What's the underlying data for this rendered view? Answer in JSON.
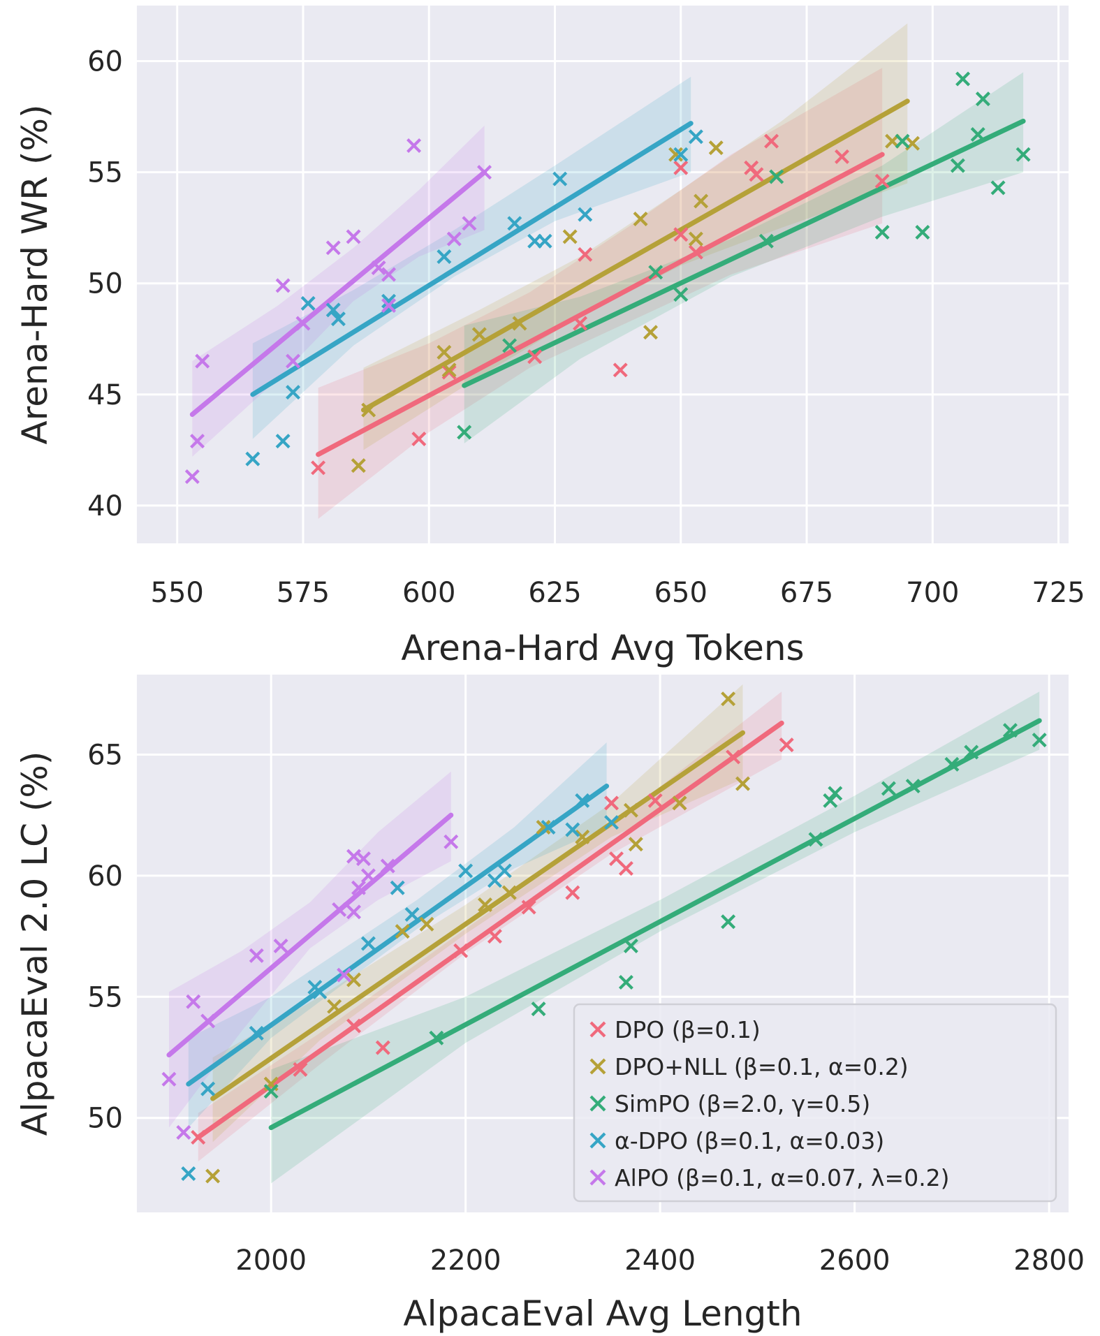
{
  "colors": {
    "DPO": "#f0697c",
    "DPO+NLL": "#b5a138",
    "SimPO": "#34ac79",
    "alpha-DPO": "#36a5c5",
    "AlPO": "#c578ea",
    "background": "#eaeaf2",
    "grid": "#ffffff"
  },
  "legend": [
    {
      "key": "DPO",
      "label": "DPO (β=0.1)"
    },
    {
      "key": "DPO+NLL",
      "label": "DPO+NLL (β=0.1, α=0.2)"
    },
    {
      "key": "SimPO",
      "label": "SimPO (β=2.0, γ=0.5)"
    },
    {
      "key": "alpha-DPO",
      "label": "α-DPO (β=0.1, α=0.03)"
    },
    {
      "key": "AlPO",
      "label": "AlPO (β=0.1, α=0.07, λ=0.2)"
    }
  ],
  "chart_data": [
    {
      "type": "scatter",
      "title": "",
      "xlabel": "Arena-Hard Avg Tokens",
      "ylabel": "Arena-Hard WR (%)",
      "xlim": [
        542,
        727
      ],
      "ylim": [
        38.3,
        62.5
      ],
      "xticks": [
        550,
        575,
        600,
        625,
        650,
        675,
        700,
        725
      ],
      "yticks": [
        40,
        45,
        50,
        55,
        60
      ],
      "series": [
        {
          "key": "DPO",
          "points": [
            [
              578,
              41.7
            ],
            [
              598,
              43.0
            ],
            [
              604,
              46.0
            ],
            [
              621,
              46.7
            ],
            [
              630,
              48.2
            ],
            [
              631,
              51.3
            ],
            [
              638,
              46.1
            ],
            [
              650,
              52.2
            ],
            [
              650,
              55.2
            ],
            [
              653,
              51.4
            ],
            [
              664,
              55.2
            ],
            [
              665,
              54.9
            ],
            [
              668,
              56.4
            ],
            [
              682,
              55.7
            ],
            [
              690,
              54.6
            ]
          ],
          "fit": [
            [
              578,
              42.3
            ],
            [
              690,
              55.8
            ]
          ],
          "band": [
            [
              578,
              39.4,
              45.3
            ],
            [
              600,
              43.3,
              47.3
            ],
            [
              620,
              46.2,
              49.6
            ],
            [
              640,
              48.3,
              52.6
            ],
            [
              660,
              50.4,
              55.8
            ],
            [
              690,
              52.7,
              59.7
            ]
          ]
        },
        {
          "key": "DPO+NLL",
          "points": [
            [
              586,
              41.8
            ],
            [
              588,
              44.3
            ],
            [
              603,
              46.9
            ],
            [
              604,
              46.1
            ],
            [
              610,
              47.7
            ],
            [
              618,
              48.2
            ],
            [
              628,
              52.1
            ],
            [
              642,
              52.9
            ],
            [
              644,
              47.8
            ],
            [
              649,
              55.8
            ],
            [
              653,
              52.0
            ],
            [
              654,
              53.7
            ],
            [
              657,
              56.1
            ],
            [
              692,
              56.4
            ],
            [
              696,
              56.3
            ]
          ],
          "fit": [
            [
              587,
              44.3
            ],
            [
              695,
              58.2
            ]
          ],
          "band": [
            [
              587,
              42.5,
              46.2
            ],
            [
              610,
              45.8,
              48.8
            ],
            [
              630,
              48.5,
              51.2
            ],
            [
              650,
              50.8,
              54.2
            ],
            [
              670,
              52.5,
              57.3
            ],
            [
              695,
              54.5,
              61.7
            ]
          ]
        },
        {
          "key": "SimPO",
          "points": [
            [
              607,
              43.3
            ],
            [
              616,
              47.2
            ],
            [
              645,
              50.5
            ],
            [
              650,
              49.5
            ],
            [
              667,
              51.9
            ],
            [
              669,
              54.8
            ],
            [
              690,
              52.3
            ],
            [
              694,
              56.4
            ],
            [
              698,
              52.3
            ],
            [
              705,
              55.3
            ],
            [
              706,
              59.2
            ],
            [
              709,
              56.7
            ],
            [
              710,
              58.3
            ],
            [
              713,
              54.3
            ],
            [
              718,
              55.8
            ]
          ],
          "fit": [
            [
              607,
              45.4
            ],
            [
              718,
              57.3
            ]
          ],
          "band": [
            [
              607,
              42.8,
              48.1
            ],
            [
              630,
              46.6,
              49.4
            ],
            [
              660,
              50.3,
              52.0
            ],
            [
              690,
              53.0,
              55.3
            ],
            [
              718,
              55.0,
              59.5
            ]
          ]
        },
        {
          "key": "alpha-DPO",
          "points": [
            [
              565,
              42.1
            ],
            [
              571,
              42.9
            ],
            [
              573,
              45.1
            ],
            [
              576,
              49.1
            ],
            [
              581,
              48.8
            ],
            [
              582,
              48.4
            ],
            [
              592,
              49.2
            ],
            [
              603,
              51.2
            ],
            [
              617,
              52.7
            ],
            [
              621,
              51.9
            ],
            [
              623,
              51.9
            ],
            [
              626,
              54.7
            ],
            [
              631,
              53.1
            ],
            [
              650,
              55.8
            ],
            [
              653,
              56.6
            ]
          ],
          "fit": [
            [
              565,
              45.0
            ],
            [
              652,
              57.2
            ]
          ],
          "band": [
            [
              565,
              43.0,
              47.3
            ],
            [
              585,
              47.2,
              49.7
            ],
            [
              605,
              50.3,
              52.4
            ],
            [
              625,
              52.8,
              55.3
            ],
            [
              652,
              55.0,
              59.3
            ]
          ]
        },
        {
          "key": "AlPO",
          "points": [
            [
              553,
              41.3
            ],
            [
              554,
              42.9
            ],
            [
              555,
              46.5
            ],
            [
              571,
              49.9
            ],
            [
              573,
              46.5
            ],
            [
              575,
              48.2
            ],
            [
              581,
              51.6
            ],
            [
              585,
              52.1
            ],
            [
              590,
              50.7
            ],
            [
              592,
              50.4
            ],
            [
              592,
              49.0
            ],
            [
              597,
              56.2
            ],
            [
              605,
              52.0
            ],
            [
              608,
              52.7
            ],
            [
              611,
              55.0
            ]
          ],
          "fit": [
            [
              553,
              44.1
            ],
            [
              611,
              55.0
            ]
          ],
          "band": [
            [
              553,
              42.2,
              46.5
            ],
            [
              570,
              45.7,
              49.0
            ],
            [
              585,
              49.2,
              51.6
            ],
            [
              598,
              51.2,
              54.2
            ],
            [
              611,
              52.4,
              57.1
            ]
          ]
        }
      ]
    },
    {
      "type": "scatter",
      "title": "",
      "xlabel": "AlpacaEval Avg Length",
      "ylabel": "AlpacaEval 2.0 LC (%)",
      "xlim": [
        1862,
        2820
      ],
      "ylim": [
        46.1,
        68.3
      ],
      "xticks": [
        2000,
        2200,
        2400,
        2600,
        2800
      ],
      "yticks": [
        50,
        55,
        60,
        65
      ],
      "series": [
        {
          "key": "DPO",
          "points": [
            [
              1925,
              49.2
            ],
            [
              2030,
              52.0
            ],
            [
              2085,
              53.8
            ],
            [
              2115,
              52.9
            ],
            [
              2195,
              56.9
            ],
            [
              2230,
              57.5
            ],
            [
              2265,
              58.7
            ],
            [
              2310,
              59.3
            ],
            [
              2350,
              63.0
            ],
            [
              2355,
              60.7
            ],
            [
              2365,
              60.3
            ],
            [
              2395,
              63.1
            ],
            [
              2420,
              63.0
            ],
            [
              2475,
              64.9
            ],
            [
              2530,
              65.4
            ]
          ],
          "fit": [
            [
              1925,
              49.2
            ],
            [
              2525,
              66.3
            ]
          ],
          "band": [
            [
              1925,
              48.2,
              50.2
            ],
            [
              2050,
              52.2,
              53.5
            ],
            [
              2200,
              56.8,
              57.8
            ],
            [
              2350,
              60.9,
              62.1
            ],
            [
              2525,
              64.8,
              67.6
            ]
          ]
        },
        {
          "key": "DPO+NLL",
          "points": [
            [
              1940,
              47.6
            ],
            [
              2000,
              51.4
            ],
            [
              2065,
              54.6
            ],
            [
              2085,
              55.7
            ],
            [
              2135,
              57.7
            ],
            [
              2160,
              58.0
            ],
            [
              2220,
              58.8
            ],
            [
              2245,
              59.3
            ],
            [
              2280,
              62.0
            ],
            [
              2320,
              61.6
            ],
            [
              2370,
              62.7
            ],
            [
              2375,
              61.3
            ],
            [
              2420,
              63.0
            ],
            [
              2470,
              67.3
            ],
            [
              2485,
              63.8
            ]
          ],
          "fit": [
            [
              1940,
              50.8
            ],
            [
              2485,
              65.9
            ]
          ],
          "band": [
            [
              1940,
              49.0,
              52.5
            ],
            [
              2050,
              53.2,
              55.0
            ],
            [
              2200,
              57.6,
              58.8
            ],
            [
              2350,
              61.6,
              63.0
            ],
            [
              2485,
              64.0,
              67.9
            ]
          ]
        },
        {
          "key": "SimPO",
          "points": [
            [
              2000,
              51.1
            ],
            [
              2170,
              53.3
            ],
            [
              2275,
              54.5
            ],
            [
              2365,
              55.6
            ],
            [
              2370,
              57.1
            ],
            [
              2470,
              58.1
            ],
            [
              2560,
              61.5
            ],
            [
              2575,
              63.1
            ],
            [
              2580,
              63.4
            ],
            [
              2635,
              63.6
            ],
            [
              2660,
              63.7
            ],
            [
              2700,
              64.6
            ],
            [
              2720,
              65.1
            ],
            [
              2760,
              66.0
            ],
            [
              2790,
              65.6
            ]
          ],
          "fit": [
            [
              2000,
              49.6
            ],
            [
              2790,
              66.4
            ]
          ],
          "band": [
            [
              2000,
              47.3,
              52.0
            ],
            [
              2200,
              53.1,
              55.0
            ],
            [
              2400,
              57.7,
              59.0
            ],
            [
              2600,
              61.8,
              63.3
            ],
            [
              2790,
              65.2,
              67.6
            ]
          ]
        },
        {
          "key": "alpha-DPO",
          "points": [
            [
              1915,
              47.7
            ],
            [
              1935,
              51.2
            ],
            [
              1985,
              53.5
            ],
            [
              2045,
              55.4
            ],
            [
              2050,
              55.2
            ],
            [
              2100,
              57.2
            ],
            [
              2130,
              59.5
            ],
            [
              2145,
              58.4
            ],
            [
              2200,
              60.2
            ],
            [
              2230,
              59.8
            ],
            [
              2240,
              60.2
            ],
            [
              2285,
              62.0
            ],
            [
              2310,
              61.9
            ],
            [
              2320,
              63.1
            ],
            [
              2350,
              62.2
            ]
          ],
          "fit": [
            [
              1915,
              51.4
            ],
            [
              2345,
              63.7
            ]
          ],
          "band": [
            [
              1915,
              49.6,
              53.3
            ],
            [
              2000,
              53.3,
              55.0
            ],
            [
              2150,
              57.8,
              59.0
            ],
            [
              2250,
              60.3,
              62.0
            ],
            [
              2345,
              62.0,
              65.5
            ]
          ]
        },
        {
          "key": "AlPO",
          "points": [
            [
              1895,
              51.6
            ],
            [
              1910,
              49.4
            ],
            [
              1920,
              54.8
            ],
            [
              1935,
              54.0
            ],
            [
              1985,
              56.7
            ],
            [
              2010,
              57.1
            ],
            [
              2070,
              58.6
            ],
            [
              2075,
              55.9
            ],
            [
              2085,
              58.5
            ],
            [
              2085,
              60.8
            ],
            [
              2090,
              59.5
            ],
            [
              2095,
              60.7
            ],
            [
              2100,
              60.0
            ],
            [
              2120,
              60.4
            ],
            [
              2185,
              61.4
            ]
          ],
          "fit": [
            [
              1895,
              52.6
            ],
            [
              2185,
              62.5
            ]
          ],
          "band": [
            [
              1895,
              49.6,
              55.2
            ],
            [
              1970,
              53.6,
              56.9
            ],
            [
              2040,
              57.0,
              58.9
            ],
            [
              2110,
              59.0,
              61.8
            ],
            [
              2185,
              60.6,
              64.3
            ]
          ]
        }
      ]
    }
  ]
}
